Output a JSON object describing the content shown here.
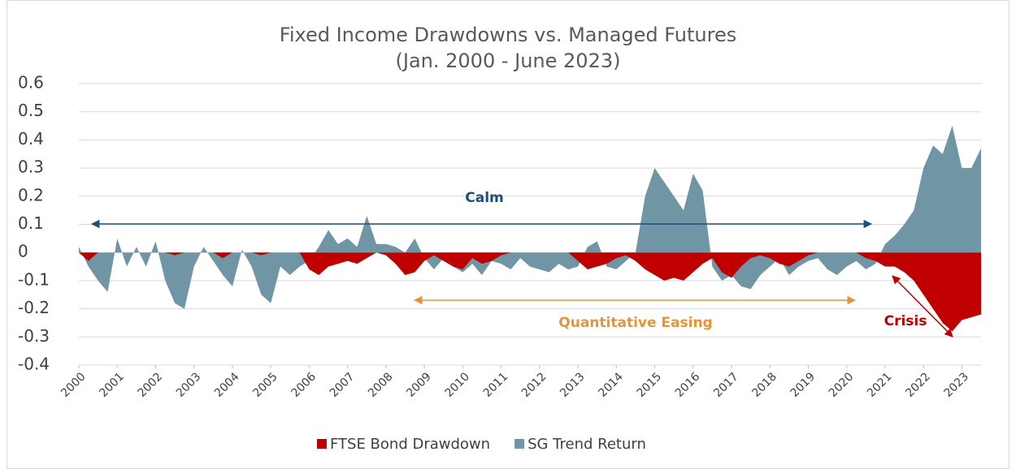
{
  "chart_data": {
    "type": "area",
    "title": "Fixed Income Drawdowns vs. Managed Futures",
    "subtitle": "(Jan. 2000 - June 2023)",
    "annotations": {
      "calm": "Calm",
      "qe": "Quantitative Easing",
      "crisis": "Crisis"
    },
    "x": [
      2000,
      2000.25,
      2000.5,
      2000.75,
      2001,
      2001.25,
      2001.5,
      2001.75,
      2002,
      2002.25,
      2002.5,
      2002.75,
      2003,
      2003.25,
      2003.5,
      2003.75,
      2004,
      2004.25,
      2004.5,
      2004.75,
      2005,
      2005.25,
      2005.5,
      2005.75,
      2006,
      2006.25,
      2006.5,
      2006.75,
      2007,
      2007.25,
      2007.5,
      2007.75,
      2008,
      2008.25,
      2008.5,
      2008.75,
      2009,
      2009.25,
      2009.5,
      2009.75,
      2010,
      2010.25,
      2010.5,
      2010.75,
      2011,
      2011.25,
      2011.5,
      2011.75,
      2012,
      2012.25,
      2012.5,
      2012.75,
      2013,
      2013.25,
      2013.5,
      2013.75,
      2014,
      2014.25,
      2014.5,
      2014.75,
      2015,
      2015.25,
      2015.5,
      2015.75,
      2016,
      2016.25,
      2016.5,
      2016.75,
      2017,
      2017.25,
      2017.5,
      2017.75,
      2018,
      2018.25,
      2018.5,
      2018.75,
      2019,
      2019.25,
      2019.5,
      2019.75,
      2020,
      2020.25,
      2020.5,
      2020.75,
      2021,
      2021.25,
      2021.5,
      2021.75,
      2022,
      2022.25,
      2022.5,
      2022.75,
      2023,
      2023.25,
      2023.5
    ],
    "series": [
      {
        "name": "SG Trend Return",
        "color": "#7096a6",
        "values": [
          0.02,
          -0.05,
          -0.1,
          -0.14,
          0.05,
          -0.05,
          0.02,
          -0.05,
          0.04,
          -0.1,
          -0.18,
          -0.2,
          -0.05,
          0.02,
          -0.03,
          -0.08,
          -0.12,
          0.01,
          -0.05,
          -0.15,
          -0.18,
          -0.05,
          -0.08,
          -0.05,
          -0.03,
          0.02,
          0.08,
          0.03,
          0.05,
          0.02,
          0.13,
          0.03,
          0.03,
          0.02,
          0,
          0.05,
          -0.02,
          -0.06,
          -0.02,
          -0.05,
          -0.07,
          -0.04,
          -0.08,
          -0.03,
          -0.04,
          -0.06,
          -0.02,
          -0.05,
          -0.06,
          -0.07,
          -0.04,
          -0.06,
          -0.05,
          0.02,
          0.04,
          -0.05,
          -0.06,
          -0.03,
          0,
          0.2,
          0.3,
          0.25,
          0.2,
          0.15,
          0.28,
          0.22,
          -0.05,
          -0.1,
          -0.08,
          -0.12,
          -0.13,
          -0.08,
          -0.05,
          -0.02,
          -0.08,
          -0.05,
          -0.03,
          -0.02,
          -0.06,
          -0.08,
          -0.05,
          -0.03,
          -0.06,
          -0.04,
          0.03,
          0.06,
          0.1,
          0.15,
          0.3,
          0.38,
          0.35,
          0.45,
          0.3,
          0.3,
          0.37
        ]
      },
      {
        "name": "FTSE Bond Drawdown",
        "color": "#c00000",
        "values": [
          0,
          -0.03,
          0,
          0,
          0,
          0,
          0,
          0,
          0,
          0,
          -0.01,
          0,
          0,
          0,
          0,
          -0.02,
          0,
          0,
          0,
          -0.01,
          0,
          0,
          0,
          0,
          -0.06,
          -0.08,
          -0.05,
          -0.04,
          -0.03,
          -0.04,
          -0.02,
          0,
          -0.01,
          -0.04,
          -0.08,
          -0.07,
          -0.03,
          -0.01,
          -0.03,
          -0.05,
          -0.06,
          -0.02,
          -0.04,
          -0.03,
          -0.01,
          0,
          0,
          0,
          0,
          0,
          0,
          0,
          -0.03,
          -0.06,
          -0.05,
          -0.04,
          -0.02,
          -0.01,
          -0.03,
          -0.06,
          -0.08,
          -0.1,
          -0.09,
          -0.1,
          -0.07,
          -0.04,
          -0.02,
          -0.07,
          -0.09,
          -0.05,
          -0.02,
          -0.01,
          -0.02,
          -0.04,
          -0.05,
          -0.03,
          -0.01,
          0,
          0,
          0,
          0,
          0,
          -0.02,
          -0.03,
          -0.05,
          -0.05,
          -0.07,
          -0.1,
          -0.15,
          -0.2,
          -0.25,
          -0.28,
          -0.24,
          -0.23,
          -0.22
        ]
      }
    ],
    "legend_order": [
      1,
      0
    ],
    "xlim": [
      2000,
      2023.5
    ],
    "xticks": [
      2000,
      2001,
      2002,
      2003,
      2004,
      2005,
      2006,
      2007,
      2008,
      2009,
      2010,
      2011,
      2012,
      2013,
      2014,
      2015,
      2016,
      2017,
      2018,
      2019,
      2020,
      2021,
      2022,
      2023
    ],
    "ylim": [
      -0.4,
      0.6
    ],
    "yticks": [
      0.6,
      0.5,
      0.4,
      0.3,
      0.2,
      0.1,
      0,
      -0.1,
      -0.2,
      -0.3,
      -0.4
    ],
    "grid": true,
    "legend": "bottom"
  }
}
